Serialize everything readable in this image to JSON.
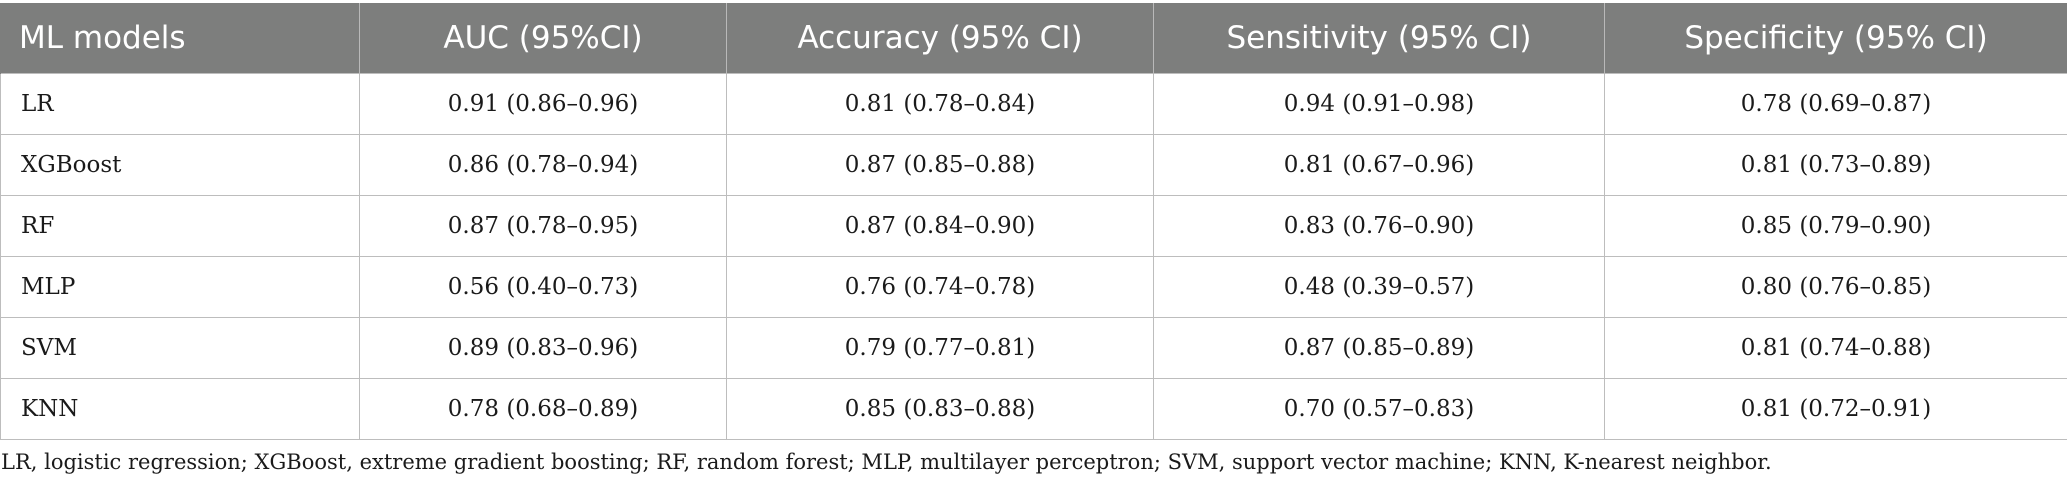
{
  "table": {
    "headers": [
      "ML models",
      "AUC (95%CI)",
      "Accuracy (95% CI)",
      "Sensitivity (95% CI)",
      "Specificity (95% CI)"
    ],
    "rows": [
      [
        "LR",
        "0.91 (0.86–0.96)",
        "0.81 (0.78–0.84)",
        "0.94 (0.91–0.98)",
        "0.78 (0.69–0.87)"
      ],
      [
        "XGBoost",
        "0.86 (0.78–0.94)",
        "0.87 (0.85–0.88)",
        "0.81 (0.67–0.96)",
        "0.81 (0.73–0.89)"
      ],
      [
        "RF",
        "0.87 (0.78–0.95)",
        "0.87 (0.84–0.90)",
        "0.83 (0.76–0.90)",
        "0.85 (0.79–0.90)"
      ],
      [
        "MLP",
        "0.56 (0.40–0.73)",
        "0.76 (0.74–0.78)",
        "0.48 (0.39–0.57)",
        "0.80 (0.76–0.85)"
      ],
      [
        "SVM",
        "0.89 (0.83–0.96)",
        "0.79 (0.77–0.81)",
        "0.87 (0.85–0.89)",
        "0.81 (0.74–0.88)"
      ],
      [
        "KNN",
        "0.78 (0.68–0.89)",
        "0.85 (0.83–0.88)",
        "0.70 (0.57–0.83)",
        "0.81 (0.72–0.91)"
      ]
    ]
  },
  "footnote": "LR, logistic regression; XGBoost, extreme gradient boosting; RF, random forest; MLP, multilayer perceptron; SVM, support vector machine; KNN, K-nearest neighbor.",
  "colors": {
    "header_background": "#7d7e7d",
    "header_text": "#ffffff",
    "grid_line": "#bdbdbd"
  }
}
